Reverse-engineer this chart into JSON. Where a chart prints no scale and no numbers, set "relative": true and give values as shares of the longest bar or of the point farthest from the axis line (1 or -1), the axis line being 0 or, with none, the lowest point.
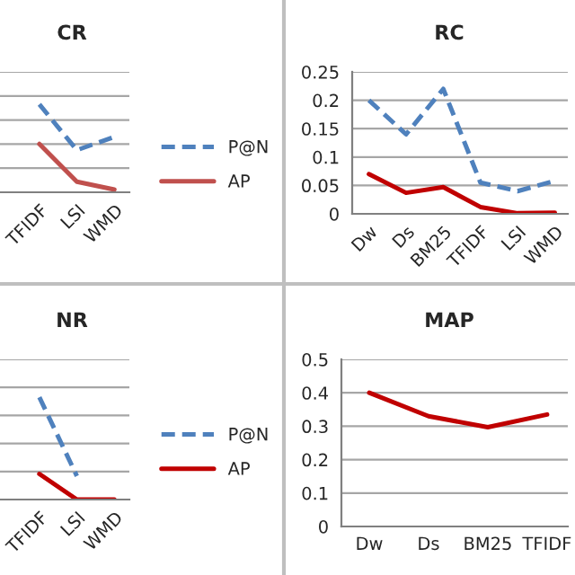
{
  "chart_data": [
    {
      "type": "line",
      "title": "CR",
      "relative": true,
      "grid": "y",
      "legend": "right",
      "categories": [
        "TFIDF",
        "LSI",
        "WMD"
      ],
      "series": [
        {
          "name": "P@N",
          "color": "#4f81bd",
          "line_style": "dashed",
          "values": [
            1,
            0.48,
            0.63
          ]
        },
        {
          "name": "AP",
          "color": "#c0504d",
          "line_style": "solid",
          "values": [
            0.55,
            0.12,
            0.03
          ]
        }
      ]
    },
    {
      "type": "line",
      "title": "RC",
      "grid": "y",
      "categories": [
        "Dw",
        "Ds",
        "BM25",
        "TFIDF",
        "LSI",
        "WMD"
      ],
      "ylim": [
        0,
        0.25
      ],
      "yticks": [
        0,
        0.05,
        0.1,
        0.15,
        0.2,
        0.25
      ],
      "series": [
        {
          "color": "#4f81bd",
          "line_style": "dashed",
          "values": [
            0.2,
            0.14,
            0.22,
            0.055,
            0.04,
            0.058
          ]
        },
        {
          "color": "#c00000",
          "line_style": "solid",
          "values": [
            0.07,
            0.037,
            0.047,
            0.012,
            0.001,
            0.002
          ]
        }
      ]
    },
    {
      "type": "line",
      "title": "NR",
      "relative": true,
      "grid": "y",
      "legend": "right",
      "categories": [
        "TFIDF",
        "LSI",
        "WMD"
      ],
      "series": [
        {
          "name": "P@N",
          "color": "#4f81bd",
          "line_style": "dashed",
          "values": [
            1,
            0.23,
            null
          ]
        },
        {
          "name": "AP",
          "color": "#c00000",
          "line_style": "solid",
          "values": [
            0.25,
            0,
            0
          ]
        }
      ]
    },
    {
      "type": "line",
      "title": "MAP",
      "grid": "y",
      "categories": [
        "Dw",
        "Ds",
        "BM25",
        "TFIDF"
      ],
      "ylim": [
        0,
        0.5
      ],
      "yticks": [
        0,
        0.1,
        0.2,
        0.3,
        0.4,
        0.5
      ],
      "series": [
        {
          "color": "#c00000",
          "line_style": "solid",
          "values": [
            0.4,
            0.33,
            0.297,
            0.335
          ]
        }
      ]
    }
  ]
}
